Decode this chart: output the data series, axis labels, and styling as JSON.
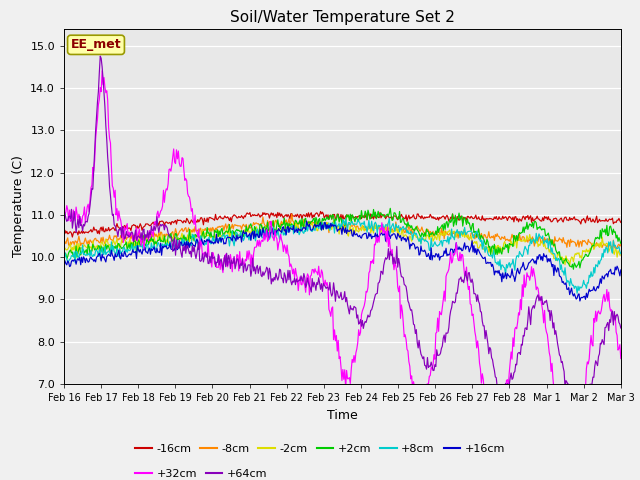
{
  "title": "Soil/Water Temperature Set 2",
  "xlabel": "Time",
  "ylabel": "Temperature (C)",
  "ylim": [
    7.0,
    15.4
  ],
  "yticks": [
    7.0,
    8.0,
    9.0,
    10.0,
    11.0,
    12.0,
    13.0,
    14.0,
    15.0
  ],
  "xlim": [
    0,
    15
  ],
  "annotation": "EE_met",
  "series": [
    {
      "label": "-16cm",
      "color": "#cc0000"
    },
    {
      "label": "-8cm",
      "color": "#ff8800"
    },
    {
      "label": "-2cm",
      "color": "#dddd00"
    },
    {
      "label": "+2cm",
      "color": "#00cc00"
    },
    {
      "label": "+8cm",
      "color": "#00cccc"
    },
    {
      "label": "+16cm",
      "color": "#0000cc"
    },
    {
      "label": "+32cm",
      "color": "#ff00ff"
    },
    {
      "label": "+64cm",
      "color": "#8800bb"
    }
  ],
  "xtick_labels": [
    "Feb 16",
    "Feb 17",
    "Feb 18",
    "Feb 19",
    "Feb 20",
    "Feb 21",
    "Feb 22",
    "Feb 23",
    "Feb 24",
    "Feb 25",
    "Feb 26",
    "Feb 27",
    "Feb 28",
    "Mar 1",
    "Mar 2",
    "Mar 3"
  ],
  "fig_bg": "#f0f0f0",
  "ax_bg": "#e8e8e8",
  "grid_color": "#ffffff"
}
